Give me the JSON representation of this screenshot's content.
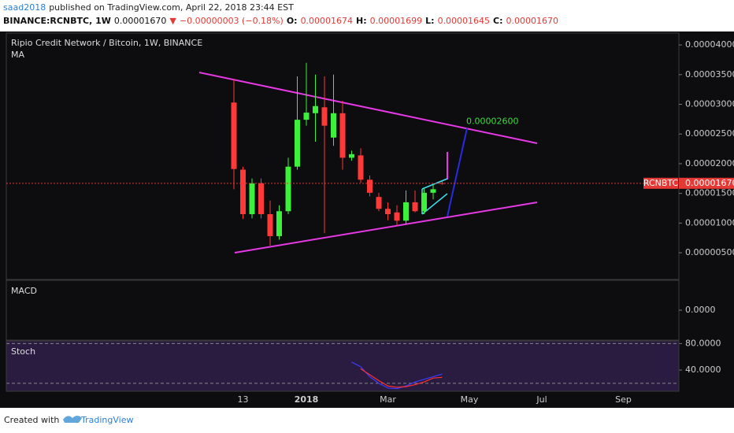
{
  "header": {
    "author": "saad2018",
    "published": "published on TradingView.com, April 22, 2018 23:44 EST",
    "symbol": "BINANCE:RCNBTC, 1W",
    "last": "0.00001670",
    "arrow": "▼",
    "change": "−0.00000003 (−0.18%)",
    "ohlc": [
      {
        "label": "O:",
        "value": "0.00001674"
      },
      {
        "label": "H:",
        "value": "0.00001699"
      },
      {
        "label": "L:",
        "value": "0.00001645"
      },
      {
        "label": "C:",
        "value": "0.00001670"
      }
    ]
  },
  "chart_data": [
    {
      "type": "candlestick",
      "title": "Ripio Credit Network / Bitcoin, 1W, BINANCE",
      "indicator": "MA",
      "categories": [
        null,
        "13",
        null,
        null,
        null,
        null,
        null,
        null,
        "2018",
        null,
        null,
        null,
        null,
        null,
        null,
        null,
        null,
        "Mar",
        null,
        null,
        null,
        null,
        null,
        null,
        null,
        null,
        "May",
        null,
        null,
        null,
        null,
        null,
        null,
        null,
        "Jul",
        null,
        null,
        null,
        null,
        null,
        null,
        null,
        null,
        "Sep",
        null,
        null,
        null,
        null,
        null
      ],
      "open": [
        3.03e-05,
        1.9e-05,
        1.15e-05,
        1.67e-05,
        1.15e-05,
        7.8e-06,
        1.2e-05,
        1.95e-05,
        2.74e-05,
        2.85e-05,
        2.95e-05,
        2.44e-05,
        2.85e-05,
        2.1e-05,
        2.14e-05,
        1.73e-05,
        1.44e-05,
        1.24e-05,
        1.18e-05,
        1.04e-05,
        1.35e-05,
        1.2e-05,
        1.51e-05,
        1.674e-05,
        null,
        null,
        null,
        null,
        null,
        null,
        null,
        null,
        null,
        null,
        null,
        null,
        null,
        null,
        null,
        null,
        null,
        null,
        null,
        null,
        null,
        null,
        null,
        null,
        null
      ],
      "high": [
        3.43e-05,
        1.95e-05,
        1.75e-05,
        1.75e-05,
        1.38e-05,
        1.3e-05,
        2.1e-05,
        3.47e-05,
        3.7e-05,
        3.5e-05,
        3.47e-05,
        3.5e-05,
        3.06e-05,
        2.22e-05,
        2.26e-05,
        1.8e-05,
        1.51e-05,
        1.35e-05,
        1.3e-05,
        1.55e-05,
        1.55e-05,
        1.58e-05,
        1.65e-05,
        1.699e-05,
        null,
        null,
        null,
        null,
        null,
        null,
        null,
        null,
        null,
        null,
        null,
        null,
        null,
        null,
        null,
        null,
        null,
        null,
        null,
        null,
        null,
        null,
        null,
        null,
        null
      ],
      "low": [
        1.57e-05,
        1.07e-05,
        1.08e-05,
        1.08e-05,
        6.2e-06,
        7.2e-06,
        1.15e-05,
        1.9e-05,
        2.64e-05,
        2.37e-05,
        8.3e-06,
        2.3e-05,
        1.9e-05,
        2.05e-05,
        1.68e-05,
        1.45e-05,
        1.2e-05,
        1.05e-05,
        9.5e-06,
        9.8e-06,
        1.18e-05,
        1.15e-05,
        1.4e-05,
        1.645e-05,
        null,
        null,
        null,
        null,
        null,
        null,
        null,
        null,
        null,
        null,
        null,
        null,
        null,
        null,
        null,
        null,
        null,
        null,
        null,
        null,
        null,
        null,
        null,
        null,
        null
      ],
      "close": [
        1.91e-05,
        1.15e-05,
        1.67e-05,
        1.15e-05,
        7.8e-06,
        1.2e-05,
        1.95e-05,
        2.74e-05,
        2.86e-05,
        2.97e-05,
        2.64e-05,
        2.85e-05,
        2.1e-05,
        2.16e-05,
        1.73e-05,
        1.51e-05,
        1.24e-05,
        1.15e-05,
        1.04e-05,
        1.35e-05,
        1.2e-05,
        1.51e-05,
        1.57e-05,
        1.67e-05,
        null,
        null,
        null,
        null,
        null,
        null,
        null,
        null,
        null,
        null,
        null,
        null,
        null,
        null,
        null,
        null,
        null,
        null,
        null,
        null,
        null,
        null,
        null,
        null,
        null
      ],
      "up_color": "#3cf03c",
      "down_color": "#ff3838",
      "ylim": [
        5e-07,
        4.2e-05
      ],
      "yticks": [
        {
          "value": 4e-05,
          "label": "0.00004000"
        },
        {
          "value": 3.5e-05,
          "label": "0.00003500"
        },
        {
          "value": 3e-05,
          "label": "0.00003000"
        },
        {
          "value": 2.5e-05,
          "label": "0.00002500"
        },
        {
          "value": 2e-05,
          "label": "0.00002000"
        },
        {
          "value": 1.5e-05,
          "label": "0.00001500"
        },
        {
          "value": 1e-05,
          "label": "0.00001000"
        },
        {
          "value": 5e-06,
          "label": "0.00000500"
        }
      ],
      "price_line": {
        "name": "RCNBTC",
        "value": 1.67e-05,
        "label": "0.00001670",
        "color": "#e53935"
      },
      "annotations": [
        {
          "value": 2.6e-05,
          "label": "0.00002600",
          "color": "#3cdc3c"
        }
      ]
    },
    {
      "type": "line",
      "title": "MACD",
      "ylim": [
        -1,
        1
      ],
      "yticks": [
        {
          "value": 0,
          "label": "0.0000"
        }
      ]
    },
    {
      "type": "line",
      "title": "Stoch",
      "background": "#2a1b40",
      "ylim": [
        8,
        84
      ],
      "yticks": [
        {
          "value": 80,
          "label": "80.0000"
        },
        {
          "value": 40,
          "label": "40.0000"
        }
      ],
      "levels": [
        80,
        20
      ],
      "series": [
        {
          "color": "#3c3cff",
          "values": [
            null,
            null,
            null,
            null,
            null,
            null,
            null,
            null,
            null,
            null,
            null,
            null,
            null,
            52,
            45,
            30,
            20,
            13,
            12,
            16,
            22,
            26,
            30,
            34,
            null,
            null,
            null,
            null,
            null,
            null,
            null,
            null,
            null,
            null,
            null,
            null,
            null,
            null,
            null,
            null,
            null,
            null,
            null,
            null,
            null,
            null,
            null,
            null,
            null
          ]
        },
        {
          "color": "#ff3030",
          "values": [
            null,
            null,
            null,
            null,
            null,
            null,
            null,
            null,
            null,
            null,
            null,
            null,
            null,
            null,
            42,
            33,
            24,
            16,
            14,
            15,
            18,
            22,
            28,
            29,
            null,
            null,
            null,
            null,
            null,
            null,
            null,
            null,
            null,
            null,
            null,
            null,
            null,
            null,
            null,
            null,
            null,
            null,
            null,
            null,
            null,
            null,
            null,
            null,
            null
          ]
        }
      ]
    }
  ],
  "footer": {
    "created_with": "Created with",
    "brand": "TradingView"
  }
}
